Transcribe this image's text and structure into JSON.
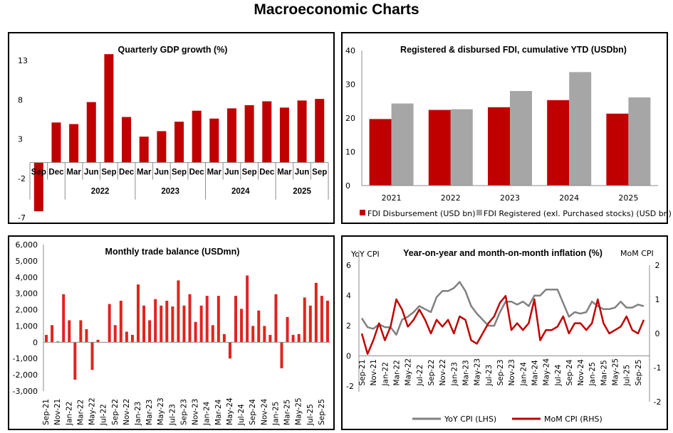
{
  "page": {
    "title": "Macroeconomic Charts"
  },
  "colors": {
    "red": "#C00000",
    "bright_red": "#E0241F",
    "gray": "#A6A6A6",
    "line_gray": "#808080",
    "axis": "#8C8C8C"
  },
  "chart_data": [
    {
      "id": "gdp",
      "type": "bar",
      "title": "Quarterly GDP growth (%)",
      "xlabel": "",
      "ylabel": "",
      "ylim": [
        -7,
        13
      ],
      "yticks": [
        13,
        8,
        3,
        -2,
        -7
      ],
      "grid": false,
      "categories": [
        "Sep",
        "Dec",
        "Mar",
        "Jun",
        "Sep",
        "Dec",
        "Mar",
        "Jun",
        "Sep",
        "Dec",
        "Mar",
        "Jun",
        "Sep",
        "Dec",
        "Mar",
        "Jun",
        "Sep"
      ],
      "year_groups": [
        {
          "label": "",
          "count": 2
        },
        {
          "label": "2022",
          "count": 4
        },
        {
          "label": "2023",
          "count": 4
        },
        {
          "label": "2024",
          "count": 4
        },
        {
          "label": "2025",
          "count": 3
        }
      ],
      "values": [
        -6.2,
        5.1,
        4.9,
        7.7,
        13.8,
        5.8,
        3.3,
        4.0,
        5.2,
        6.6,
        5.6,
        6.9,
        7.3,
        7.8,
        7.0,
        7.9,
        8.1
      ]
    },
    {
      "id": "fdi",
      "type": "bar",
      "title": "Registered & disbursed FDI, cumulative YTD (USDbn)",
      "xlabel": "",
      "ylabel": "",
      "ylim": [
        0,
        40
      ],
      "yticks": [
        0,
        10,
        20,
        30,
        40
      ],
      "grid": false,
      "legend": "bottom",
      "categories": [
        "2021",
        "2022",
        "2023",
        "2024",
        "2025"
      ],
      "series": [
        {
          "name": "FDI Disbursement (USD bn)",
          "values": [
            19.7,
            22.4,
            23.2,
            25.3,
            21.3
          ]
        },
        {
          "name": "FDI Registered (exl. Purchased stocks) (USD bn)",
          "values": [
            24.3,
            22.6,
            28.0,
            33.6,
            26.1
          ]
        }
      ]
    },
    {
      "id": "trade",
      "type": "bar",
      "title": "Monthly trade balance (USDmn)",
      "xlabel": "",
      "ylabel": "",
      "ylim": [
        -3000,
        6000
      ],
      "yticks": [
        6000,
        5000,
        4000,
        3000,
        2000,
        1000,
        0,
        -1000,
        -2000,
        -3000
      ],
      "ytick_labels": [
        "6,000",
        "5,000",
        "4,000",
        "3,000",
        "2,000",
        "1,000",
        "0",
        "-1,000",
        "-2,000",
        "-3,000"
      ],
      "grid": false,
      "x_tick_labels": [
        "Sep-21",
        "Nov-21",
        "Jan-22",
        "Mar-22",
        "May-22",
        "Jul-22",
        "Sep-22",
        "Nov-22",
        "Jan-23",
        "Mar-23",
        "May-23",
        "Jul-23",
        "Sep-23",
        "Nov-23",
        "Jan-24",
        "Mar-24",
        "May-24",
        "Jul-24",
        "Sep-24",
        "Nov-24",
        "Jan-25",
        "Mar-25",
        "May-25",
        "Jul-25",
        "Sep-25"
      ],
      "categories": [
        "Sep-21",
        "Oct-21",
        "Nov-21",
        "Dec-21",
        "Jan-22",
        "Feb-22",
        "Mar-22",
        "Apr-22",
        "May-22",
        "Jun-22",
        "Jul-22",
        "Aug-22",
        "Sep-22",
        "Oct-22",
        "Nov-22",
        "Dec-22",
        "Jan-23",
        "Feb-23",
        "Mar-23",
        "Apr-23",
        "May-23",
        "Jun-23",
        "Jul-23",
        "Aug-23",
        "Sep-23",
        "Oct-23",
        "Nov-23",
        "Dec-23",
        "Jan-24",
        "Feb-24",
        "Mar-24",
        "Apr-24",
        "May-24",
        "Jun-24",
        "Jul-24",
        "Aug-24",
        "Sep-24",
        "Oct-24",
        "Nov-24",
        "Dec-24",
        "Jan-25",
        "Feb-25",
        "Mar-25",
        "Apr-25",
        "May-25",
        "Jun-25",
        "Jul-25",
        "Aug-25",
        "Sep-25",
        "Oct-25"
      ],
      "values": [
        450,
        1050,
        50,
        2950,
        1350,
        -2300,
        1350,
        800,
        -1700,
        150,
        0,
        2350,
        1050,
        2550,
        650,
        450,
        3550,
        2250,
        1350,
        2650,
        2250,
        2550,
        2200,
        3800,
        2250,
        2950,
        1250,
        2250,
        2850,
        1050,
        2850,
        500,
        -1000,
        2850,
        2050,
        4100,
        1000,
        1950,
        1000,
        450,
        2950,
        -1600,
        1550,
        450,
        500,
        2750,
        2250,
        3650,
        2850,
        2550
      ]
    },
    {
      "id": "cpi",
      "type": "line",
      "title": "Year-on-year and month-on-month inflation (%)",
      "xlabel": "",
      "ylabel": "YoY CPI",
      "ylabel_right": "MoM CPI",
      "ylim": [
        -2,
        7
      ],
      "yticks": [
        -2,
        0,
        2,
        4,
        6
      ],
      "ylim_right": [
        -2,
        2
      ],
      "yticks_right": [
        -2,
        -1,
        0,
        1,
        2
      ],
      "grid": false,
      "legend": "bottom",
      "x_tick_labels": [
        "Sep-21",
        "Nov-21",
        "Jan-22",
        "Mar-22",
        "May-22",
        "Jul-22",
        "Sep-22",
        "Nov-22",
        "Jan-23",
        "Mar-23",
        "May-23",
        "Jul-23",
        "Sep-23",
        "Nov-23",
        "Jan-24",
        "Mar-24",
        "May-24",
        "Jul-24",
        "Sep-24",
        "Nov-24",
        "Jan-25",
        "Mar-25",
        "May-25",
        "Jul-25",
        "Sep-25"
      ],
      "x": [
        "Sep-21",
        "Oct-21",
        "Nov-21",
        "Dec-21",
        "Jan-22",
        "Feb-22",
        "Mar-22",
        "Apr-22",
        "May-22",
        "Jun-22",
        "Jul-22",
        "Aug-22",
        "Sep-22",
        "Oct-22",
        "Nov-22",
        "Dec-22",
        "Jan-23",
        "Feb-23",
        "Mar-23",
        "Apr-23",
        "May-23",
        "Jun-23",
        "Jul-23",
        "Aug-23",
        "Sep-23",
        "Oct-23",
        "Nov-23",
        "Dec-23",
        "Jan-24",
        "Feb-24",
        "Mar-24",
        "Apr-24",
        "May-24",
        "Jun-24",
        "Jul-24",
        "Aug-24",
        "Sep-24",
        "Oct-24",
        "Nov-24",
        "Dec-24",
        "Jan-25",
        "Feb-25",
        "Mar-25",
        "Apr-25",
        "May-25",
        "Jun-25",
        "Jul-25",
        "Aug-25",
        "Sep-25",
        "Oct-25"
      ],
      "series": [
        {
          "name": "YoY CPI (LHS)",
          "axis": "left",
          "values": [
            2.5,
            1.9,
            1.8,
            2.1,
            1.9,
            1.9,
            1.4,
            2.4,
            2.6,
            2.9,
            3.3,
            3.1,
            2.9,
            3.9,
            4.3,
            4.3,
            4.5,
            4.9,
            4.3,
            3.3,
            2.8,
            2.4,
            2.0,
            2.0,
            2.9,
            3.6,
            3.6,
            3.4,
            3.6,
            3.3,
            4.0,
            4.0,
            4.4,
            4.4,
            4.4,
            3.5,
            2.6,
            2.9,
            2.8,
            2.9,
            3.6,
            3.3,
            3.1,
            3.1,
            3.2,
            3.6,
            3.2,
            3.2,
            3.4,
            3.3
          ]
        },
        {
          "name": "MoM CPI (RHS)",
          "axis": "right",
          "values": [
            0.0,
            -0.6,
            -0.2,
            0.3,
            -0.2,
            0.2,
            1.0,
            0.7,
            0.2,
            0.4,
            0.7,
            0.4,
            0.0,
            0.4,
            0.2,
            0.4,
            0.0,
            0.5,
            0.4,
            -0.2,
            -0.3,
            0.0,
            0.3,
            0.5,
            0.9,
            1.1,
            0.1,
            0.3,
            0.1,
            0.3,
            1.0,
            -0.2,
            0.1,
            0.1,
            0.2,
            0.5,
            0.0,
            0.3,
            0.3,
            0.1,
            0.3,
            1.0,
            0.3,
            0.0,
            0.1,
            0.2,
            0.5,
            0.1,
            0.0,
            0.4
          ]
        }
      ]
    }
  ]
}
